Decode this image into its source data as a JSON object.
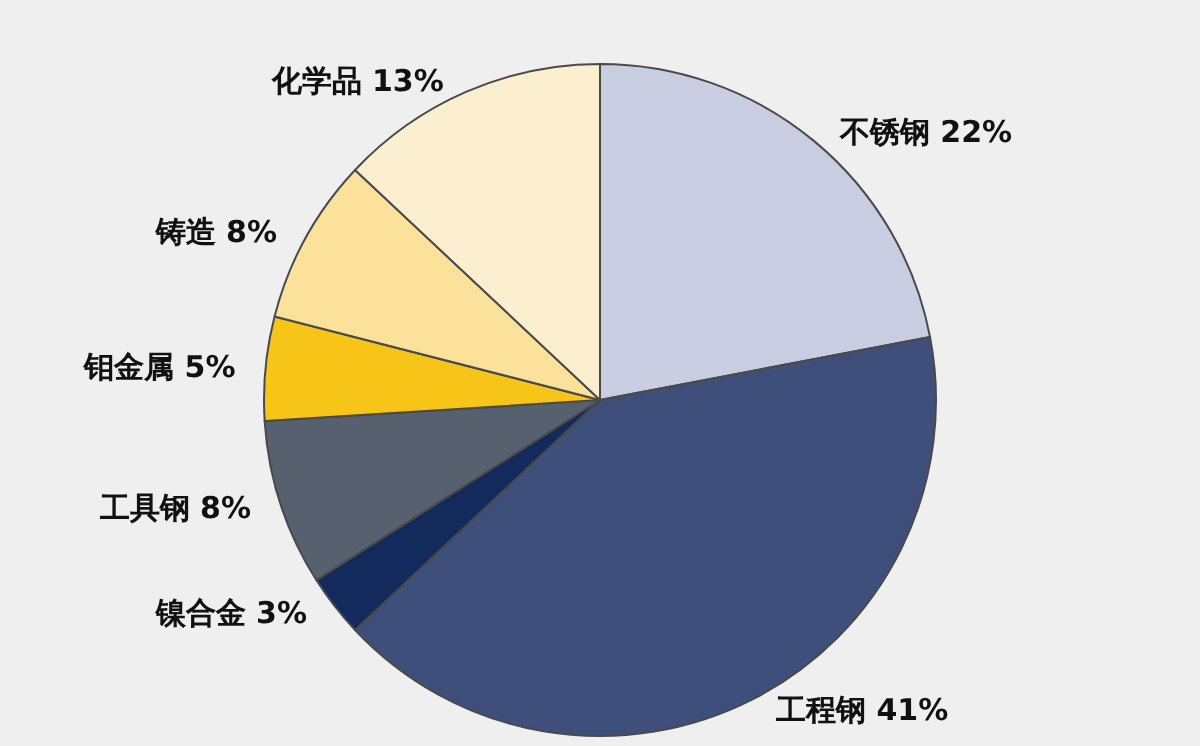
{
  "chart_data": {
    "type": "pie",
    "categories": [
      "不锈钢",
      "工程钢",
      "镍合金",
      "工具钢",
      "钼金属",
      "铸造",
      "化学品"
    ],
    "values": [
      22,
      41,
      3,
      8,
      5,
      8,
      13
    ],
    "value_labels": [
      "22%",
      "41%",
      "3%",
      "8%",
      "5%",
      "8%",
      "13%"
    ],
    "colors": [
      "#c8cde2",
      "#3f4f7c",
      "#132a5c",
      "#56606e",
      "#f7c518",
      "#fbe19a",
      "#fcefcf"
    ],
    "legend": false
  }
}
